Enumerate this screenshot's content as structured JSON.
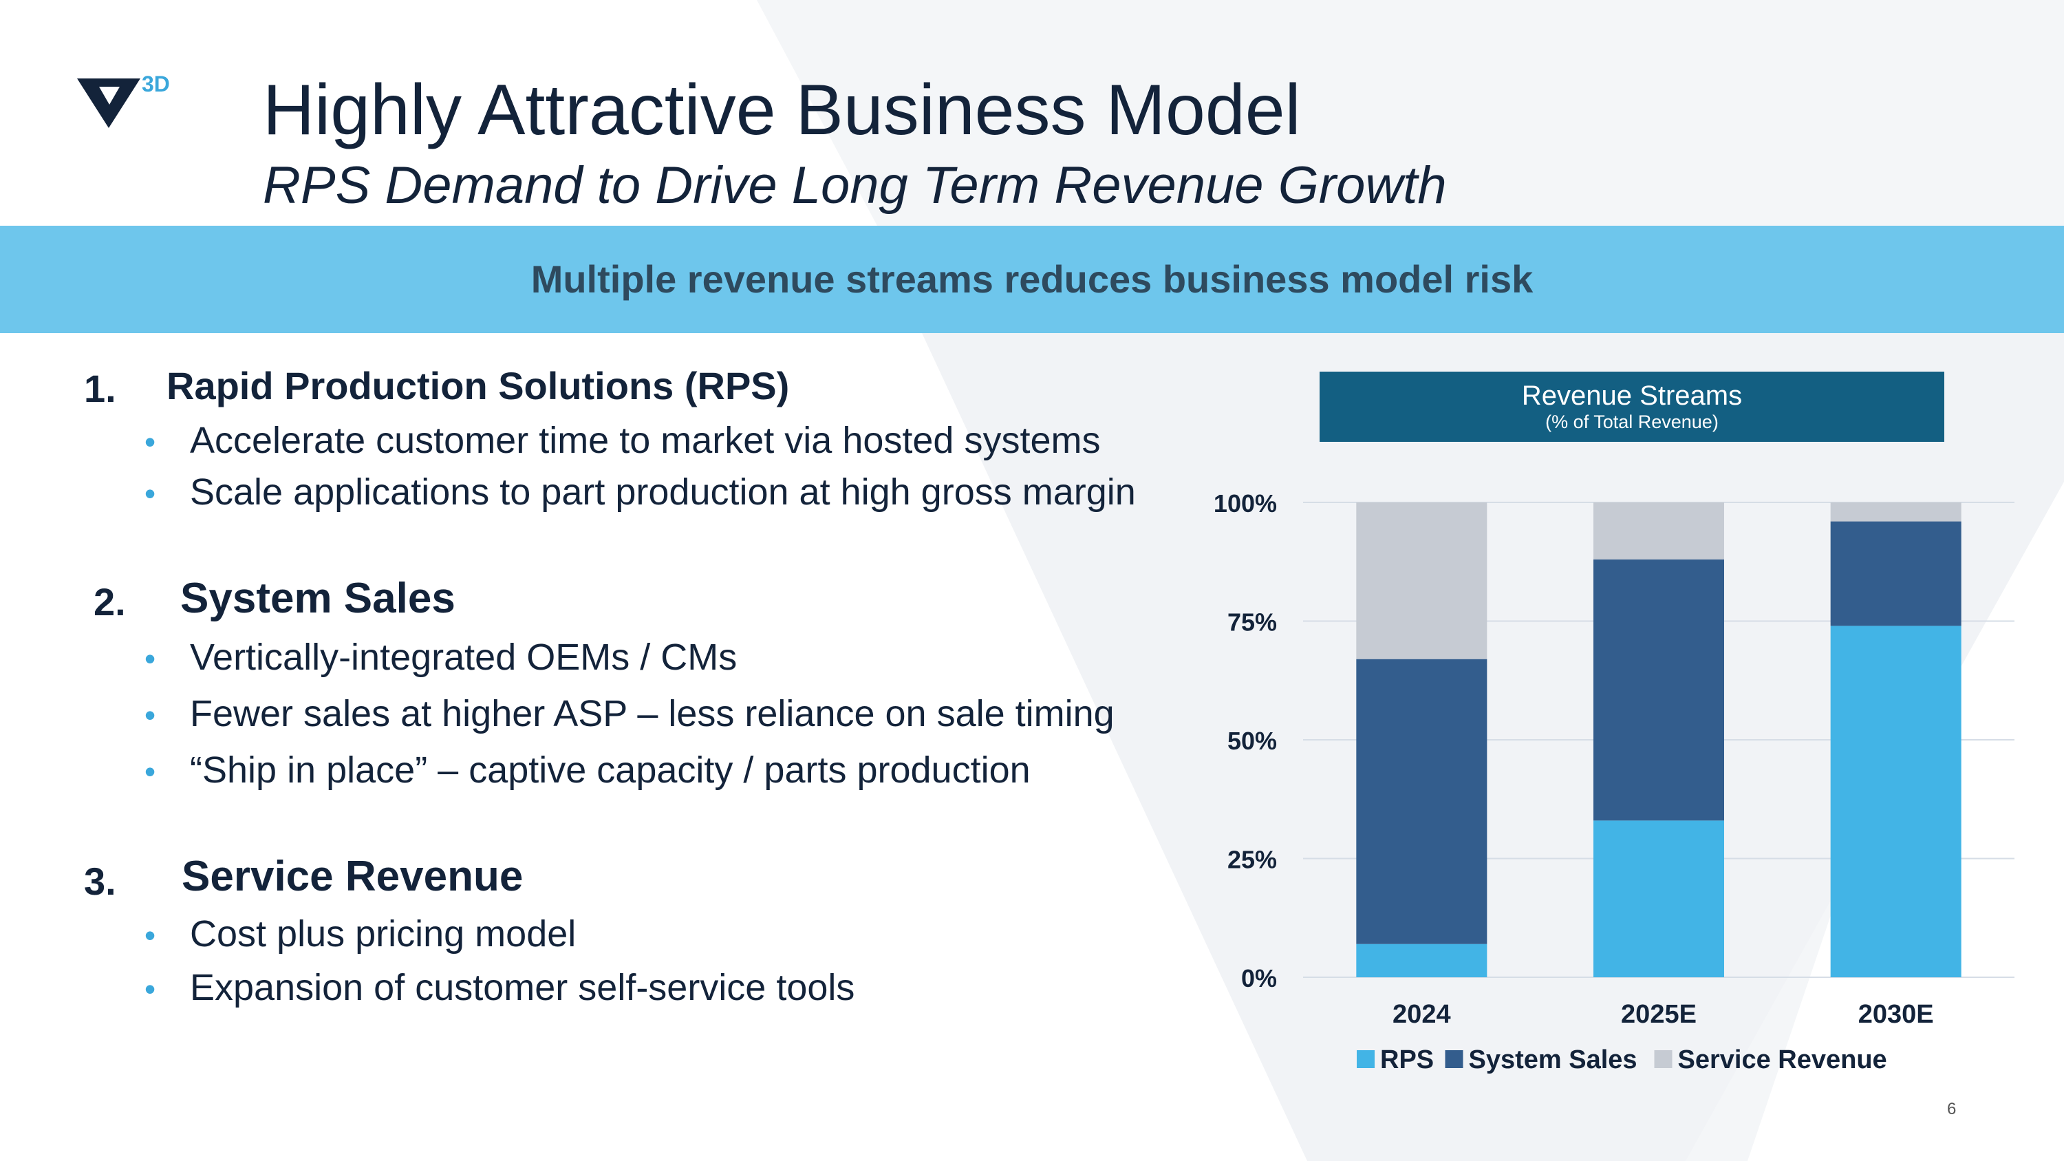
{
  "brand": {
    "logo_text": "3D"
  },
  "header": {
    "title": "Highly Attractive Business Model",
    "subtitle": "RPS Demand to Drive Long Term Revenue Growth"
  },
  "banner": {
    "text": "Multiple revenue streams reduces business model risk"
  },
  "sections": [
    {
      "number": "1.",
      "title": "Rapid Production Solutions (RPS)",
      "bullets": [
        "Accelerate customer time to market via hosted systems",
        "Scale applications to part production at high gross margin"
      ]
    },
    {
      "number": "2.",
      "title": "System Sales",
      "bullets": [
        "Vertically-integrated OEMs / CMs",
        "Fewer sales at higher ASP – less reliance on sale timing",
        "“Ship in place” – captive capacity / parts production"
      ]
    },
    {
      "number": "3.",
      "title": "Service Revenue",
      "bullets": [
        "Cost plus pricing model",
        "Expansion of customer self-service tools"
      ]
    }
  ],
  "bullet_glyph": "•",
  "chart_data": {
    "type": "bar",
    "stacked": true,
    "title": "Revenue Streams",
    "subtitle": "(% of Total Revenue)",
    "categories": [
      "2024",
      "2025E",
      "2030E"
    ],
    "series": [
      {
        "name": "RPS",
        "color": "#42b4e6",
        "values": [
          7,
          33,
          74
        ]
      },
      {
        "name": "System Sales",
        "color": "#335d8d",
        "values": [
          60,
          55,
          22
        ]
      },
      {
        "name": "Service Revenue",
        "color": "#c6cbd3",
        "values": [
          33,
          12,
          4
        ]
      }
    ],
    "yticks": [
      0,
      25,
      50,
      75,
      100
    ],
    "ytick_labels": [
      "0%",
      "25%",
      "50%",
      "75%",
      "100%"
    ],
    "ylim": [
      0,
      100
    ],
    "xlabel": "",
    "ylabel": "",
    "grid": true,
    "legend": "bottom",
    "title_box_color": "#135f82"
  },
  "footer": {
    "page_number": "6"
  }
}
